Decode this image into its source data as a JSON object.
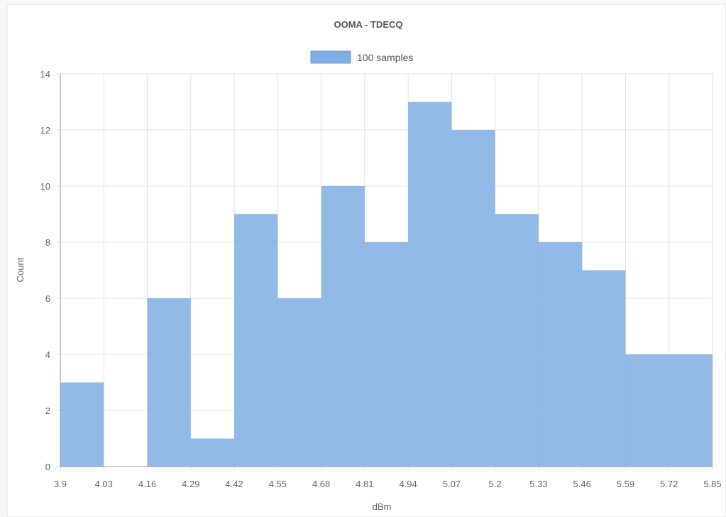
{
  "chart_data": {
    "type": "bar",
    "title": "OOMA - TDECQ",
    "xlabel": "dBm",
    "ylabel": "Count",
    "series": [
      {
        "name": "100 samples",
        "color": "#7eaee3"
      }
    ],
    "bin_edges": [
      3.9,
      4.03,
      4.16,
      4.29,
      4.42,
      4.55,
      4.68,
      4.81,
      4.94,
      5.07,
      5.2,
      5.33,
      5.46,
      5.59,
      5.72,
      5.85
    ],
    "x_tick_labels": [
      "3.9",
      "4.03",
      "4.16",
      "4.29",
      "4.42",
      "4.55",
      "4.68",
      "4.81",
      "4.94",
      "5.07",
      "5.2",
      "5.33",
      "5.46",
      "5.59",
      "5.72",
      "5.85"
    ],
    "values": [
      3,
      0,
      6,
      1,
      9,
      6,
      10,
      8,
      13,
      12,
      9,
      8,
      7,
      4,
      4
    ],
    "ylim": [
      0,
      14
    ],
    "y_ticks": [
      0,
      2,
      4,
      6,
      8,
      10,
      12,
      14
    ],
    "grid": true,
    "legend_position": "top"
  }
}
